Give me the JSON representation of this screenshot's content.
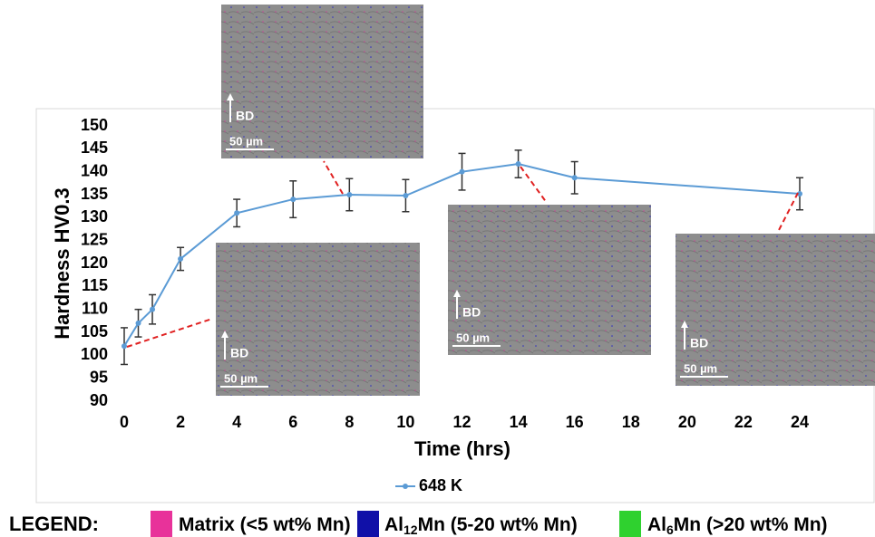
{
  "chart_data": {
    "type": "line",
    "x_label": "Time (hrs)",
    "y_label": "Hardness HV0.3",
    "x": [
      0,
      0.5,
      1,
      2,
      4,
      6,
      8,
      10,
      12,
      14,
      16,
      24
    ],
    "series": [
      {
        "name": "648 K",
        "color": "#5b9bd5",
        "values": [
          102,
          107,
          110,
          121,
          131,
          134,
          135,
          134.8,
          140,
          141.7,
          138.7,
          135.2
        ],
        "errors": [
          4,
          3,
          3.2,
          2.5,
          3,
          4,
          3.5,
          3.5,
          4,
          3,
          3.5,
          3.5
        ]
      }
    ],
    "xlim": [
      0,
      24
    ],
    "xticks": [
      0,
      2,
      4,
      6,
      8,
      10,
      12,
      14,
      16,
      18,
      20,
      22,
      24
    ],
    "ylim": [
      90,
      150
    ],
    "yticks": [
      90,
      95,
      100,
      105,
      110,
      115,
      120,
      125,
      130,
      135,
      140,
      145,
      150
    ],
    "grid": false,
    "legend": "bottom"
  },
  "insets": [
    {
      "direction": "BD",
      "scale": "50 µm"
    },
    {
      "direction": "BD",
      "scale": "50 µm"
    },
    {
      "direction": "BD",
      "scale": "50 µm"
    },
    {
      "direction": "BD",
      "scale": "50 µm"
    }
  ],
  "phase_legend": {
    "title": "LEGEND:",
    "items": [
      {
        "color": "#e8329a",
        "prefix": "Matrix (<5 wt% Mn)"
      },
      {
        "color": "#1010a8",
        "prefix": "Al",
        "subscript": "12",
        "suffix": "Mn (5-20 wt% Mn)"
      },
      {
        "color": "#2fd12f",
        "prefix": "Al",
        "subscript": "6",
        "suffix": "Mn (>20 wt% Mn)"
      }
    ]
  }
}
